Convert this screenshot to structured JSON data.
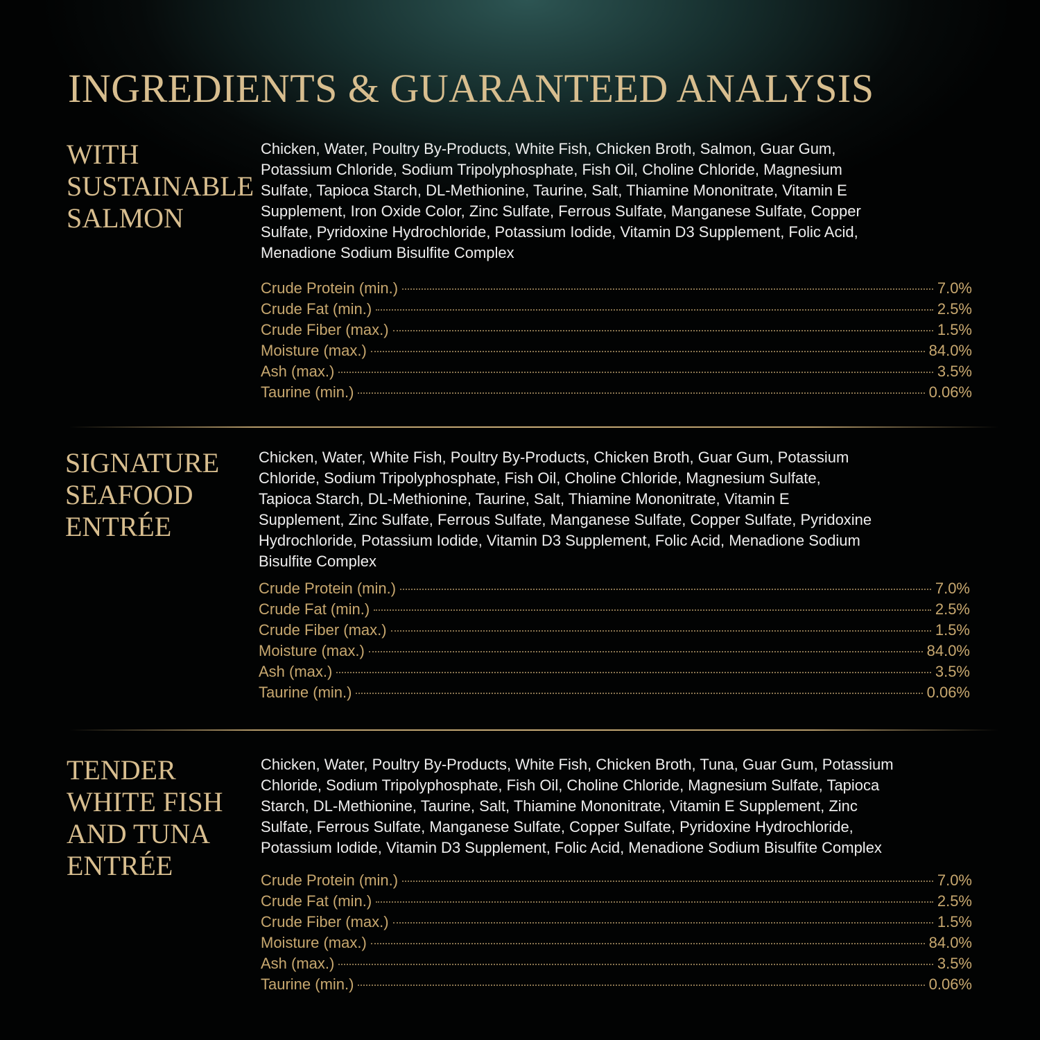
{
  "title": "INGREDIENTS & GUARANTEED ANALYSIS",
  "sections": [
    {
      "name_lines": [
        "WITH",
        "SUSTAINABLE",
        "SALMON"
      ],
      "ingredient_lines": [
        "Chicken, Water, Poultry By-Products, White Fish, Chicken Broth, Salmon, Guar Gum,",
        "Potassium Chloride, Sodium Tripolyphosphate, Fish Oil, Choline Chloride, Magnesium",
        "Sulfate, Tapioca Starch, DL-Methionine, Taurine, Salt, Thiamine Mononitrate, Vitamin E",
        "Supplement, Iron Oxide Color, Zinc Sulfate, Ferrous Sulfate, Manganese Sulfate, Copper",
        "Sulfate, Pyridoxine Hydrochloride, Potassium Iodide, Vitamin D3 Supplement, Folic Acid,",
        "Menadione Sodium Bisulfite Complex"
      ],
      "analysis": [
        {
          "label": "Crude Protein (min.)",
          "value": "7.0%"
        },
        {
          "label": "Crude Fat (min.)",
          "value": "2.5%"
        },
        {
          "label": "Crude Fiber (max.)",
          "value": "1.5%"
        },
        {
          "label": "Moisture (max.)",
          "value": "84.0%"
        },
        {
          "label": "Ash (max.)",
          "value": "3.5%"
        },
        {
          "label": "Taurine (min.)",
          "value": "0.06%"
        }
      ]
    },
    {
      "name_lines": [
        "SIGNATURE",
        "SEAFOOD",
        "ENTRÉE"
      ],
      "ingredient_lines": [
        "Chicken, Water, White Fish, Poultry By-Products, Chicken Broth, Guar Gum, Potassium",
        "Chloride, Sodium Tripolyphosphate, Fish Oil, Choline Chloride, Magnesium Sulfate,",
        "Tapioca Starch, DL-Methionine, Taurine, Salt, Thiamine Mononitrate, Vitamin E",
        "Supplement, Zinc Sulfate, Ferrous Sulfate, Manganese Sulfate, Copper Sulfate, Pyridoxine",
        "Hydrochloride, Potassium Iodide, Vitamin D3 Supplement, Folic Acid, Menadione Sodium",
        "Bisulfite Complex"
      ],
      "analysis": [
        {
          "label": "Crude Protein (min.)",
          "value": "7.0%"
        },
        {
          "label": "Crude Fat (min.)",
          "value": "2.5%"
        },
        {
          "label": "Crude Fiber (max.)",
          "value": "1.5%"
        },
        {
          "label": "Moisture (max.)",
          "value": "84.0%"
        },
        {
          "label": "Ash (max.)",
          "value": "3.5%"
        },
        {
          "label": "Taurine (min.)",
          "value": "0.06%"
        }
      ]
    },
    {
      "name_lines": [
        "TENDER",
        "WHITE FISH",
        "AND TUNA",
        "ENTRÉE"
      ],
      "ingredient_lines": [
        "Chicken, Water, Poultry By-Products, White Fish, Chicken Broth, Tuna, Guar Gum, Potassium",
        "Chloride, Sodium Tripolyphosphate, Fish Oil, Choline Chloride, Magnesium Sulfate, Tapioca",
        "Starch, DL-Methionine, Taurine, Salt, Thiamine Mononitrate, Vitamin E Supplement, Zinc",
        "Sulfate, Ferrous Sulfate, Manganese Sulfate, Copper Sulfate, Pyridoxine Hydrochloride,",
        "Potassium Iodide, Vitamin D3 Supplement, Folic Acid, Menadione Sodium Bisulfite Complex"
      ],
      "analysis": [
        {
          "label": "Crude Protein (min.)",
          "value": "7.0%"
        },
        {
          "label": "Crude Fat (min.)",
          "value": "2.5%"
        },
        {
          "label": "Crude Fiber (max.)",
          "value": "1.5%"
        },
        {
          "label": "Moisture (max.)",
          "value": "84.0%"
        },
        {
          "label": "Ash (max.)",
          "value": "3.5%"
        },
        {
          "label": "Taurine (min.)",
          "value": "0.06%"
        }
      ]
    }
  ]
}
